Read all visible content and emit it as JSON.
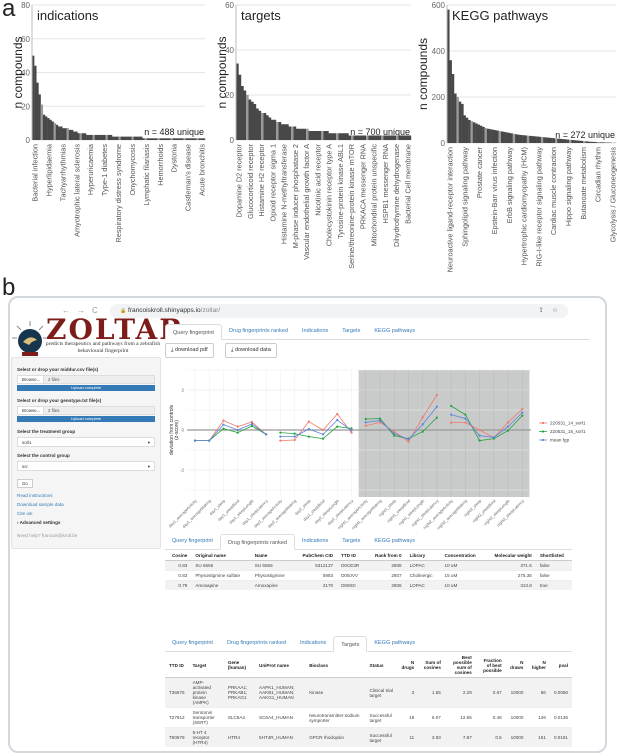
{
  "panel_a_letter": "a",
  "panel_b_letter": "b",
  "chart_data": [
    {
      "type": "bar",
      "title": "indications",
      "ylabel": "n compounds",
      "ylim": [
        0,
        80
      ],
      "yticks": [
        0,
        20,
        40,
        60,
        80
      ],
      "grid": true,
      "annotation": "n = 488 unique",
      "tick_labels": [
        "Bacterial infection",
        "Hyperlipidaemia",
        "Tachyarrhythmias",
        "Amyotrophic lateral sclerosis",
        "Hyperuricaemia",
        "Type-1 diabetes",
        "Respiratory distress syndrome",
        "Onychomycosis",
        "Lymphatic filariasis",
        "Hemorrhoids",
        "Dystonia",
        "Castleman's disease",
        "Acute bronchitis"
      ],
      "values": [
        50,
        44,
        34,
        27,
        21,
        15,
        14,
        13,
        12,
        11,
        10,
        9,
        8,
        8,
        7,
        7,
        7,
        6,
        6,
        5,
        5,
        4,
        4,
        4,
        4,
        3,
        3,
        3,
        3,
        3,
        3,
        3,
        3,
        3,
        3,
        3,
        3,
        2,
        2,
        2,
        2,
        2,
        2,
        2,
        2,
        2,
        2,
        2,
        2,
        2,
        2,
        1,
        1,
        1,
        1,
        1,
        1,
        1,
        1,
        1,
        1,
        1,
        1,
        1,
        1,
        1,
        1,
        1,
        1,
        1,
        1,
        1,
        1,
        1,
        1,
        1,
        1,
        1,
        1,
        1
      ]
    },
    {
      "type": "bar",
      "title": "targets",
      "ylabel": "n compounds",
      "ylim": [
        0,
        60
      ],
      "yticks": [
        0,
        20,
        40,
        60
      ],
      "grid": true,
      "annotation": "n = 700 unique",
      "tick_labels": [
        "Dopamine D2 receptor",
        "Glucocorticoid receptor",
        "Histamine H2 receptor",
        "Opioid receptor sigma 1",
        "Histamine N-methyltransferase",
        "M-phase inducer phosphatase 2",
        "Vascular endothelial growth factor A",
        "Nicotinic acid receptor",
        "Cholecystokinin receptor type A",
        "Tyrosine-protein kinase ABL1",
        "Serine/threonine-protein kinase mTOR",
        "PRKACA messenger RNA",
        "Mitochondrial protein unspecific",
        "HSPB1 messenger RNA",
        "Dihydrothymine dehydrogenase",
        "Bacterial Cell membrane"
      ],
      "values": [
        34,
        29,
        24,
        22,
        20,
        18,
        17,
        16,
        14,
        13,
        12,
        12,
        11,
        10,
        9,
        9,
        8,
        8,
        7,
        7,
        7,
        6,
        6,
        6,
        5,
        5,
        5,
        5,
        5,
        4,
        4,
        4,
        4,
        4,
        4,
        4,
        4,
        3,
        3,
        3,
        3,
        3,
        3,
        3,
        3,
        2,
        2,
        2,
        2,
        2,
        2,
        2,
        2,
        2,
        2,
        2,
        2,
        2,
        2,
        2,
        2,
        2,
        2,
        2,
        2,
        2,
        2,
        2,
        2,
        2
      ]
    },
    {
      "type": "bar",
      "title": "KEGG pathways",
      "ylabel": "n compounds",
      "ylim": [
        0,
        600
      ],
      "yticks": [
        0,
        200,
        400,
        600
      ],
      "grid": true,
      "annotation": "n = 272 unique",
      "tick_labels": [
        "Neuroactive ligand-receptor interaction",
        "Sphingolipid signaling pathway",
        "Prostate cancer",
        "Epstein-Barr virus infection",
        "ErbB signaling pathway",
        "Hypertrophic cardiomyopathy (HCM)",
        "RIG-I-like receptor signaling pathway",
        "Cardiac muscle contraction",
        "Hippo signaling pathway",
        "Butanoate metabolism",
        "Circadian rhythm",
        "Glycolysis / Gluconeogenesis"
      ],
      "values": [
        580,
        360,
        300,
        215,
        200,
        180,
        170,
        120,
        110,
        100,
        95,
        90,
        85,
        80,
        75,
        70,
        65,
        62,
        60,
        58,
        56,
        54,
        52,
        50,
        48,
        46,
        44,
        42,
        40,
        38,
        36,
        35,
        34,
        33,
        32,
        31,
        30,
        29,
        28,
        27,
        26,
        25,
        24,
        23,
        22,
        21,
        20,
        19,
        18,
        17,
        16,
        15,
        14,
        13,
        12,
        11,
        10,
        9,
        8,
        7,
        6,
        5,
        5,
        4,
        4,
        3,
        3,
        2,
        2,
        2,
        1,
        1
      ]
    },
    {
      "type": "line",
      "ylabel": "deviation from controls\n(z-score)",
      "ylabel_lines": [
        "deviation from controls",
        "(z-score)"
      ],
      "ylim": [
        -3.3,
        3
      ],
      "yticks": [
        -2,
        0,
        2
      ],
      "legend": "right",
      "shaded_categories_from": "night1_averageActivity",
      "categories": [
        "day1_averageActivity",
        "day1_averageWaking",
        "day1_sleep",
        "day1_sleepBout",
        "day1_sleepLength",
        "day1_sleepLatency",
        "day2_averageActivity",
        "day2_averageWaking",
        "day2_sleep",
        "day2_sleepBout",
        "day2_sleepLength",
        "day2_sleepLatency",
        "night1_averageActivity",
        "night1_averageWaking",
        "night1_sleep",
        "night1_sleepBout",
        "night1_sleepLength",
        "night1_sleepLatency",
        "night2_averageActivity",
        "night2_averageWaking",
        "night2_sleep",
        "night2_sleepBout",
        "night2_sleepLength",
        "night2_sleepLatency"
      ],
      "series": [
        {
          "name": "220531_14_sorl1",
          "color": "#f0786a",
          "values": [
            -0.53,
            -0.53,
            0.47,
            0.17,
            0.4,
            -0.22,
            -0.53,
            -0.5,
            0.42,
            0,
            0.8,
            -0.13,
            0.22,
            0.38,
            -0.08,
            -0.58,
            0.63,
            1.75,
            0.37,
            0.37,
            0,
            -0.38,
            0.38,
            1.05
          ]
        },
        {
          "name": "220531_15_sorl1",
          "color": "#22a33c",
          "values": [
            -0.53,
            -0.53,
            0.07,
            -0.13,
            0.2,
            -0.22,
            -0.13,
            -0.18,
            -0.33,
            -0.43,
            0.17,
            0.08,
            0.55,
            0.57,
            -0.28,
            -0.43,
            -0.08,
            0.62,
            1.2,
            0.77,
            -0.53,
            -0.43,
            -0.03,
            0.72
          ]
        },
        {
          "name": "mean fgp",
          "color": "#5b84dc",
          "values": [
            -0.53,
            -0.53,
            0.27,
            0,
            0.3,
            -0.22,
            -0.33,
            -0.33,
            0.05,
            -0.22,
            0.5,
            -0.02,
            0.38,
            0.47,
            -0.18,
            -0.47,
            0.28,
            1.17,
            0.77,
            0.57,
            -0.28,
            -0.37,
            0.17,
            0.87
          ]
        }
      ]
    }
  ],
  "browser": {
    "url_host": "francoiskroll.shinyapps.io",
    "url_path": "/zoltar/",
    "back_icon": "←",
    "forward_icon": "→",
    "reload_icon": "C",
    "lock_icon": "🔒",
    "share_icon": "⇪",
    "star_icon": "☆"
  },
  "logo": {
    "title": "ZOLTAR",
    "subtitle": "predicts therapeutics and pathways from a zebrafish behavioural fingerprint"
  },
  "sidebar": {
    "middur_label": "Select or drop your middur.csv file(s)",
    "middur_browse": "Browse...",
    "middur_value": "2 files",
    "middur_progress": "Upload complete",
    "middur_progress_pct": 100,
    "genotype_label": "Select or drop your genotype.txt file(s)",
    "genotype_browse": "Browse...",
    "genotype_value": "2 files",
    "genotype_progress": "Upload complete",
    "genotype_progress_pct": 100,
    "treatment_label": "Select the treatment group",
    "treatment_value": "sorl1",
    "control_label": "Select the control group",
    "control_value": "scr",
    "go_label": "Go",
    "links": [
      "Read instructions",
      "Download sample data",
      "Cite us!"
    ],
    "advanced_label": "› Advanced settings",
    "help_text": "Need help? francois@kroll.be"
  },
  "tabs": [
    "Query fingerprint",
    "Drug fingerprints ranked",
    "Indications",
    "Targets",
    "KEGG pathways"
  ],
  "buttons": {
    "download_pdf": "download pdf",
    "download_data": "download data",
    "download_icon": "⤓"
  },
  "drug_table": {
    "headers": [
      "Cosine",
      "Original name",
      "Name",
      "PubChem CID",
      "TTD ID",
      "Rank from 0",
      "Library",
      "Concentration",
      "Molecular weight",
      "Shortlisted"
    ],
    "rows": [
      [
        "0.83",
        "SU 6656",
        "SU 6656",
        "5312137",
        "D0CE3R",
        "2808",
        "LOPAC",
        "10 uM",
        "371.5",
        "false"
      ],
      [
        "0.82",
        "Physostigmine sulfate",
        "Physostigmine",
        "5983",
        "D09JVV",
        "2807",
        "Cholinergic",
        "15 uM",
        "275.35",
        "false"
      ],
      [
        "0.79",
        "Amoxapine",
        "Amoxapine",
        "2170",
        "D09IOI",
        "2806",
        "LOPAC",
        "10 uM",
        "313.8",
        "true"
      ]
    ]
  },
  "target_table": {
    "headers": [
      "TTD ID",
      "Target",
      "Gene (human)",
      "UniProt name",
      "Bioclass",
      "Status",
      "N drugs",
      "Sum of cosines",
      "Best possible sum of cosines",
      "Fraction of best possible",
      "N draws",
      "N higher",
      "pval"
    ],
    "rows": [
      [
        "T36675",
        "AMP-activated protein kinase (AMPK)",
        "PRKAA1; PRKAB1; PRKAG1",
        "AAPK1_HUMAN; AAKB1_HUMAN; AAKG1_HUMAN",
        "Kinase",
        "Clinical trial target",
        "3",
        "1.55",
        "2.29",
        "0.67",
        "10000",
        "56",
        "0.0056"
      ],
      [
        "T27812",
        "Serotonin transporter (SERT)",
        "SLC6A4",
        "SC6A4_HUMAN",
        "Neurotransmitter:sodium symporter",
        "Successful target",
        "18",
        "6.07",
        "12.55",
        "0.48",
        "10000",
        "136",
        "0.0136"
      ],
      [
        "T50679",
        "5-HT 4 receptor (HTR4)",
        "HTR4",
        "5HT4R_HUMAN",
        "GPCR rhodopsin",
        "Successful target",
        "11",
        "3.93",
        "7.87",
        "0.5",
        "10000",
        "161",
        "0.0161"
      ]
    ]
  }
}
